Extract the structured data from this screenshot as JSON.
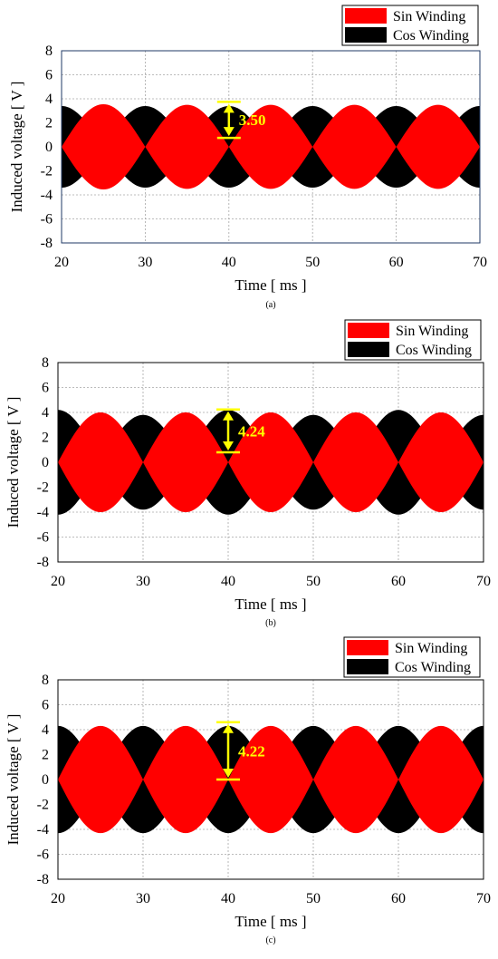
{
  "colors": {
    "sin": "#ff0000",
    "cos": "#000000",
    "annotation": "#ffff00",
    "grid": "#a6a6a6",
    "frame_a": "#1f3864",
    "frame_bc": "#000000"
  },
  "chart_data": [
    {
      "type": "area",
      "caption": "(a)",
      "xlabel": "Time [ ms ]",
      "ylabel": "Induced voltage [ V ]",
      "xlim": [
        20,
        70
      ],
      "ylim": [
        -8,
        8
      ],
      "xticks": [
        20,
        30,
        40,
        50,
        60,
        70
      ],
      "yticks": [
        -8,
        -6,
        -4,
        -2,
        0,
        2,
        4,
        6,
        8
      ],
      "grid": true,
      "legend_position": "top-right-outside",
      "legend": [
        "Sin Winding",
        "Cos Winding"
      ],
      "series": [
        {
          "name": "Sin Winding",
          "color": "#ff0000",
          "envelope": "|sin|",
          "period_ms": 20,
          "peak_v": [
            3.55,
            3.5,
            3.5,
            3.5,
            3.5
          ]
        },
        {
          "name": "Cos Winding",
          "color": "#000000",
          "envelope": "|cos|",
          "period_ms": 20,
          "peak_v": [
            3.4,
            3.4,
            3.4,
            3.4,
            3.4,
            3.4
          ]
        }
      ],
      "annotation": {
        "text": "3.50",
        "x": 40,
        "y_top": 3.75,
        "y_bottom": 0.75
      }
    },
    {
      "type": "area",
      "caption": "(b)",
      "xlabel": "Time [ ms ]",
      "ylabel": "Induced voltage [ V ]",
      "xlim": [
        20,
        70
      ],
      "ylim": [
        -8,
        8
      ],
      "xticks": [
        20,
        30,
        40,
        50,
        60,
        70
      ],
      "yticks": [
        -8,
        -6,
        -4,
        -2,
        0,
        2,
        4,
        6,
        8
      ],
      "grid": true,
      "legend_position": "top-right-outside",
      "legend": [
        "Sin Winding",
        "Cos Winding"
      ],
      "series": [
        {
          "name": "Sin Winding",
          "color": "#ff0000",
          "envelope": "|sin|",
          "period_ms": 20,
          "peak_v": [
            4.0,
            4.0,
            4.0,
            4.0,
            4.0
          ]
        },
        {
          "name": "Cos Winding",
          "color": "#000000",
          "envelope": "|cos|",
          "period_ms": 20,
          "peak_v": [
            4.2,
            3.8,
            4.2,
            3.8,
            4.2,
            3.8
          ]
        }
      ],
      "annotation": {
        "text": "4.24",
        "x": 40,
        "y_top": 4.24,
        "y_bottom": 0.8
      }
    },
    {
      "type": "area",
      "caption": "(c)",
      "xlabel": "Time [ ms ]",
      "ylabel": "Induced voltage [ V ]",
      "xlim": [
        20,
        70
      ],
      "ylim": [
        -8,
        8
      ],
      "xticks": [
        20,
        30,
        40,
        50,
        60,
        70
      ],
      "yticks": [
        -8,
        -6,
        -4,
        -2,
        0,
        2,
        4,
        6,
        8
      ],
      "grid": true,
      "legend_position": "top-right-outside",
      "legend": [
        "Sin Winding",
        "Cos Winding"
      ],
      "series": [
        {
          "name": "Sin Winding",
          "color": "#ff0000",
          "envelope": "|sin|",
          "period_ms": 20,
          "peak_v": [
            4.3,
            4.3,
            4.3,
            4.3,
            4.3
          ]
        },
        {
          "name": "Cos Winding",
          "color": "#000000",
          "envelope": "|cos|",
          "period_ms": 20,
          "peak_v": [
            4.3,
            4.3,
            4.3,
            4.3,
            4.3,
            4.3
          ]
        }
      ],
      "annotation": {
        "text": "4.22",
        "x": 40,
        "y_top": 4.6,
        "y_bottom": 0.0
      }
    }
  ]
}
